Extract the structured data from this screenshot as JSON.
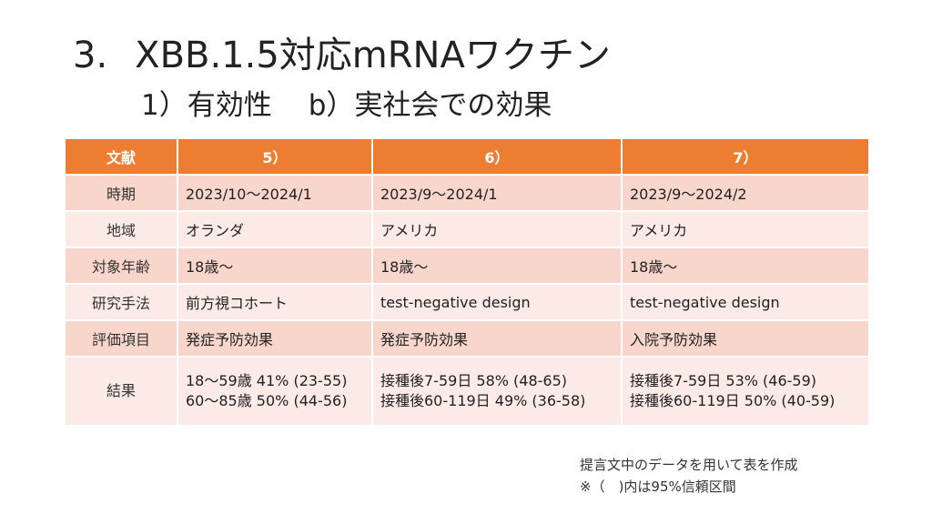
{
  "title": {
    "number": "3.",
    "text": "XBB.1.5対応mRNAワクチン"
  },
  "subtitle": {
    "part1": "1）有効性",
    "part2": "b）実社会での効果"
  },
  "table": {
    "headers": [
      "文献",
      "5）",
      "6）",
      "7）"
    ],
    "rows": [
      {
        "label": "時期",
        "cells": [
          [
            "2023/10～2024/1"
          ],
          [
            "2023/9～2024/1"
          ],
          [
            "2023/9～2024/2"
          ]
        ]
      },
      {
        "label": "地域",
        "cells": [
          [
            "オランダ"
          ],
          [
            "アメリカ"
          ],
          [
            "アメリカ"
          ]
        ]
      },
      {
        "label": "対象年齢",
        "cells": [
          [
            "18歳～"
          ],
          [
            "18歳～"
          ],
          [
            "18歳～"
          ]
        ]
      },
      {
        "label": "研究手法",
        "cells": [
          [
            "前方視コホート"
          ],
          [
            "test-negative design"
          ],
          [
            "test-negative design"
          ]
        ]
      },
      {
        "label": "評価項目",
        "cells": [
          [
            "発症予防効果"
          ],
          [
            "発症予防効果"
          ],
          [
            "入院予防効果"
          ]
        ]
      },
      {
        "label": "結果",
        "cells": [
          [
            "18～59歳 41% (23-55)",
            "60～85歳 50% (44-56)"
          ],
          [
            "接種後7-59日 58% (48-65)",
            "接種後60-119日 49% (36-58)"
          ],
          [
            "接種後7-59日 53% (46-59)",
            "接種後60-119日 50% (40-59)"
          ]
        ]
      }
    ]
  },
  "notes": [
    "提言文中のデータを用いて表を作成",
    "※（　)内は95%信頼区間"
  ],
  "colors": {
    "header": "#ED7D31",
    "row_odd": "#F8D6CB",
    "row_even": "#FBEAE6"
  }
}
